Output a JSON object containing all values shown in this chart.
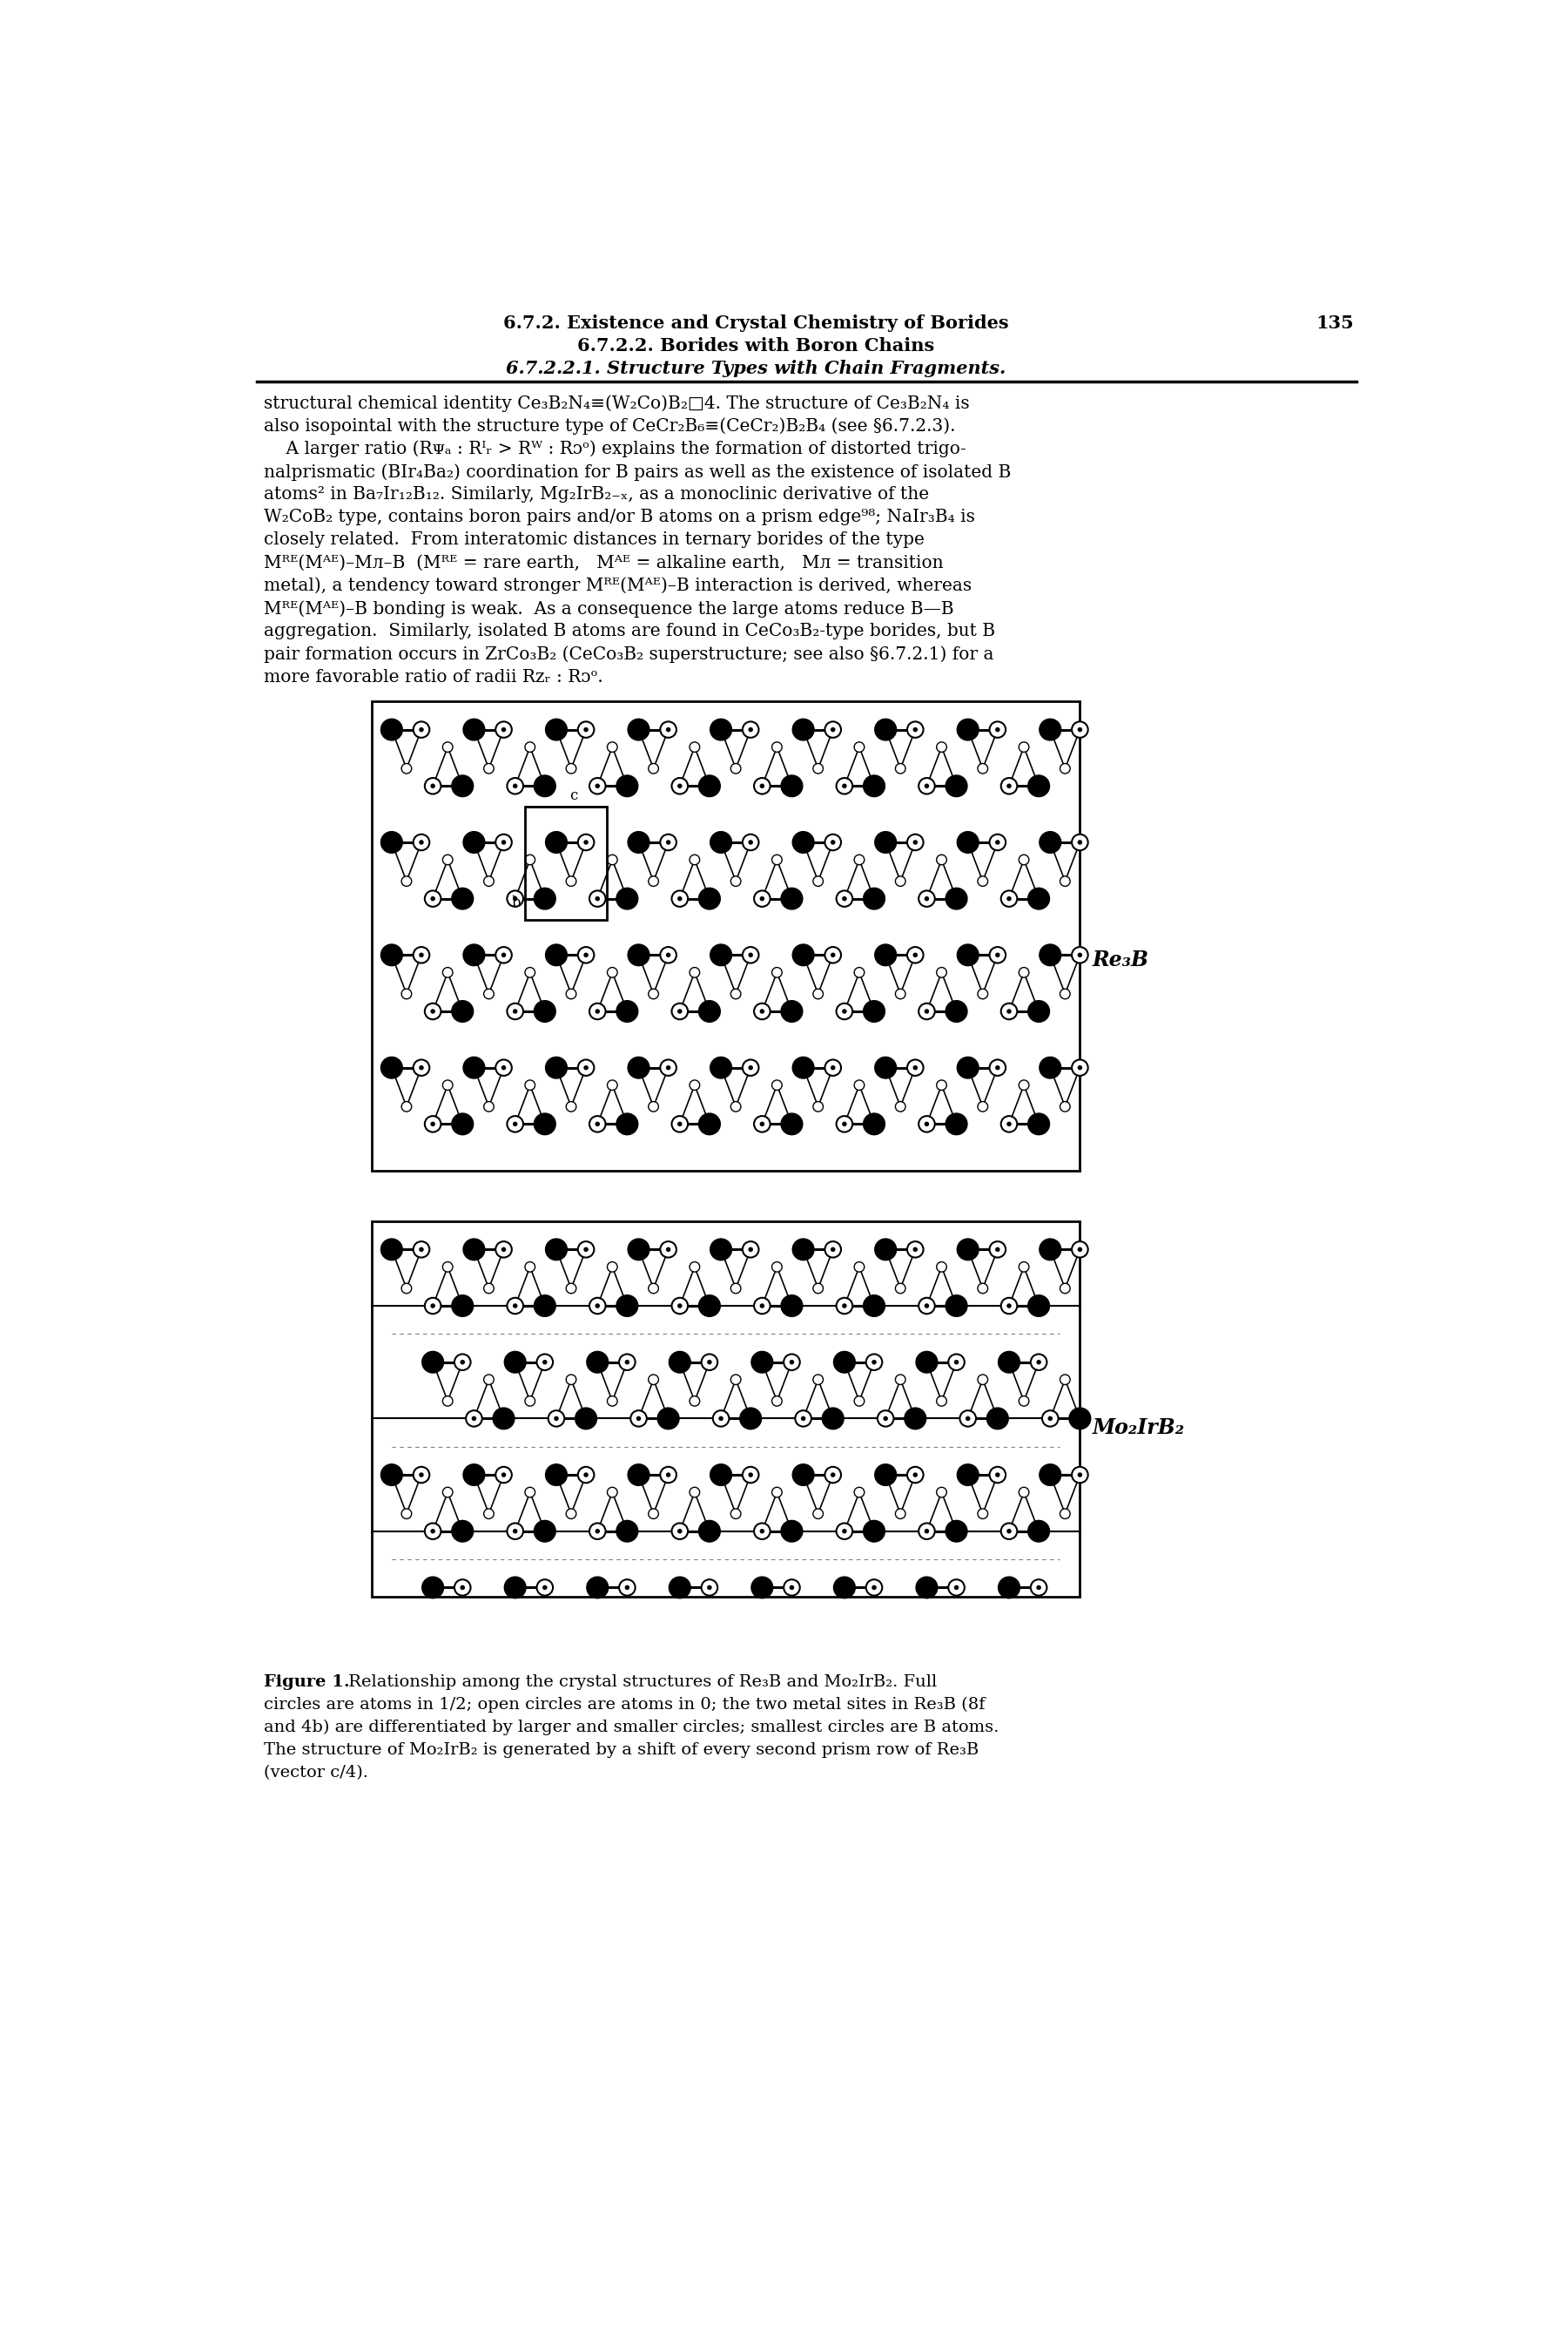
{
  "page_number": "135",
  "header_line1": "6.7.2. Existence and Crystal Chemistry of Borides",
  "header_line2": "6.7.2.2. Borides with Boron Chains",
  "header_line3": "6.7.2.2.1. Structure Types with Chain Fragments.",
  "body_line1": "structural chemical identity Ce₃B₂N₄≡(W₂Co)B₂□4. The structure of Ce₃B₂N₄ is",
  "body_line2": "also isopointal with the structure type of CeCr₂B₆≡(CeCr₂)B₂B₄ (see §6.7.2.3).",
  "body_line3": "    A larger ratio (R",
  "body_line3b": " : R",
  "body_line3c": " > R",
  "body_line3d": " : R",
  "body_line3e": ") explains the formation of distorted trigo-",
  "body_line4": "nalprismatic (BIr₄Ba₂) coordination for B pairs as well as the existence of isolated B",
  "body_line5": "atoms² in Ba₇Ir₁₂B₁₂. Similarly, Mg₂IrB₂₋ₓ, as a monoclinic derivative of the",
  "body_line6": "W₂CoB₂ type, contains boron pairs and/or B atoms on a prism edge⁹⁸; NaIr₃B₄ is",
  "body_line7": "closely related. From interatomic distances in ternary borides of the type",
  "body_line8": "Mᴿᴱ(Mᴬᴱ)–Mᴫ–B (Mᴿᴱ = rare earth,  Mᴬᴱ = alkaline earth,  Mᴫ = transition",
  "body_line9": "metal), a tendency toward stronger Mᴿᴱ(Mᴬᴱ)–B interaction is derived, whereas",
  "body_line10": "Mᴿᴱ(Mᴬᴱ)–B bonding is weak. As a consequence the large atoms reduce B—B",
  "body_line11": "aggregation. Similarly, isolated B atoms are found in CeCo₃B₂-type borides, but B",
  "body_line12": "pair formation occurs in ZrCo₃B₂ (CeCo₃B₂ superstructure; see also §6.7.2.1) for a",
  "body_line13": "more favorable ratio of radii Rᴢᵣ : Rᴐᵒ.",
  "fig_label_re3b": "Re₃B",
  "fig_label_mo2irb2": "Mo₂IrB₂",
  "cap_bold": "Figure 1.",
  "cap_line1": " Relationship among the crystal structures of Re₃B and Mo₂IrB₂. Full",
  "cap_line2": "circles are atoms in 1/2; open circles are atoms in 0; the two metal sites in Re₃B (8f",
  "cap_line3": "and 4b) are differentiated by larger and smaller circles; smallest circles are B atoms.",
  "cap_line4": "The structure of Mo₂IrB₂ is generated by a shift of every second prism row of Re₃B",
  "cap_line5": "(vector c/4).",
  "bg_color": "#ffffff"
}
